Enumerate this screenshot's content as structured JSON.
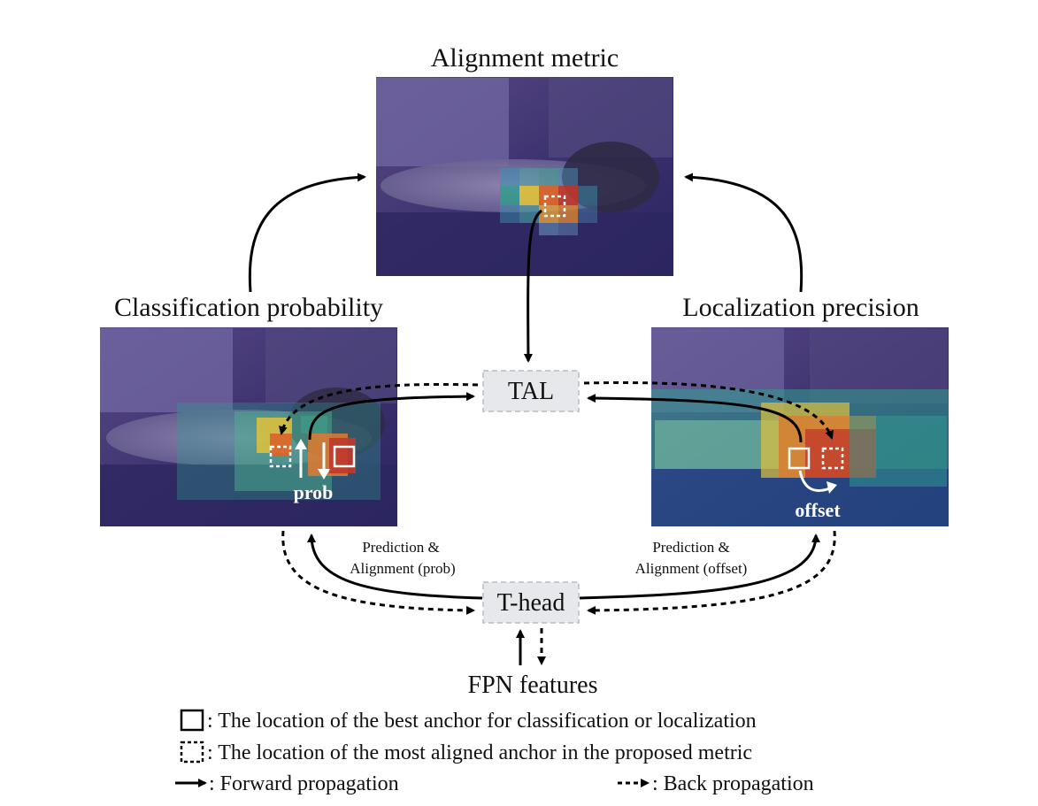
{
  "panels": {
    "top": {
      "title": "Alignment metric"
    },
    "left": {
      "title": "Classification probability",
      "annotation": "prob"
    },
    "right": {
      "title": "Localization precision",
      "annotation": "offset"
    }
  },
  "nodes": {
    "tal": "TAL",
    "thead": "T-head",
    "fpn": "FPN features"
  },
  "edge_labels": {
    "left_line1": "Prediction &",
    "left_line2": "Alignment (prob)",
    "right_line1": "Prediction &",
    "right_line2": "Alignment (offset)"
  },
  "legend": {
    "solid_box": ": The location of the best anchor for classification or localization",
    "dashed_box": ": The location of the most aligned anchor in the proposed metric",
    "forward": ": Forward propagation",
    "backward": ": Back propagation"
  },
  "colors": {
    "panel_bg": "#3b2f6e",
    "node_fill": "#e6e8eb",
    "heat_hot": "#c0392b",
    "heat_warm": "#e8a33a",
    "heat_mid": "#2f9e8f"
  }
}
